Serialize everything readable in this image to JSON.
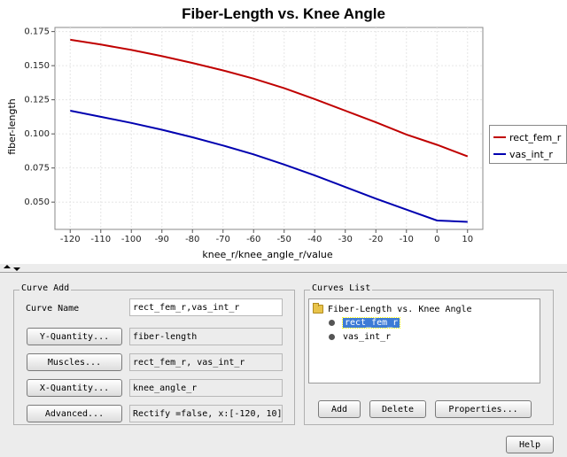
{
  "chart_data": {
    "type": "line",
    "title": "Fiber-Length vs. Knee Angle",
    "xlabel": "knee_r/knee_angle_r/value",
    "ylabel": "fiber-length",
    "xlim": [
      -125,
      15
    ],
    "ylim": [
      0.03,
      0.178
    ],
    "xticks": [
      "-120",
      "-110",
      "-100",
      "-90",
      "-80",
      "-70",
      "-60",
      "-50",
      "-40",
      "-30",
      "-20",
      "-10",
      "0",
      "10"
    ],
    "yticks": [
      "0.050",
      "0.075",
      "0.100",
      "0.125",
      "0.150",
      "0.175"
    ],
    "legend_position": "right",
    "grid": true,
    "series": [
      {
        "name": "rect_fem_r",
        "color": "#c00000",
        "x": [
          -120,
          -110,
          -100,
          -90,
          -80,
          -70,
          -60,
          -50,
          -40,
          -30,
          -20,
          -10,
          0,
          10
        ],
        "y": [
          0.169,
          0.1655,
          0.1615,
          0.157,
          0.152,
          0.1465,
          0.1405,
          0.1335,
          0.1255,
          0.117,
          0.1085,
          0.0995,
          0.092,
          0.0835
        ]
      },
      {
        "name": "vas_int_r",
        "color": "#0000b0",
        "x": [
          -120,
          -110,
          -100,
          -90,
          -80,
          -70,
          -60,
          -50,
          -40,
          -30,
          -20,
          -10,
          0,
          10
        ],
        "y": [
          0.117,
          0.1125,
          0.108,
          0.103,
          0.0975,
          0.0915,
          0.085,
          0.0775,
          0.0695,
          0.061,
          0.0525,
          0.0445,
          0.0365,
          0.0355
        ]
      }
    ]
  },
  "curve_add": {
    "title": "Curve Add",
    "curve_name_label": "Curve Name",
    "curve_name_value": "rect_fem_r,vas_int_r",
    "y_quantity_button": "Y-Quantity...",
    "y_quantity_value": "fiber-length",
    "muscles_button": "Muscles...",
    "muscles_value": "rect_fem_r, vas_int_r",
    "x_quantity_button": "X-Quantity...",
    "x_quantity_value": "knee_angle_r",
    "advanced_button": "Advanced...",
    "advanced_value": "Rectify =false, x:[-120, 10]"
  },
  "curves_list": {
    "title": "Curves List",
    "root_label": "Fiber-Length vs. Knee Angle",
    "items": [
      "rect_fem_r",
      "vas_int_r"
    ],
    "add_button": "Add",
    "delete_button": "Delete",
    "properties_button": "Properties..."
  },
  "help_button": "Help"
}
